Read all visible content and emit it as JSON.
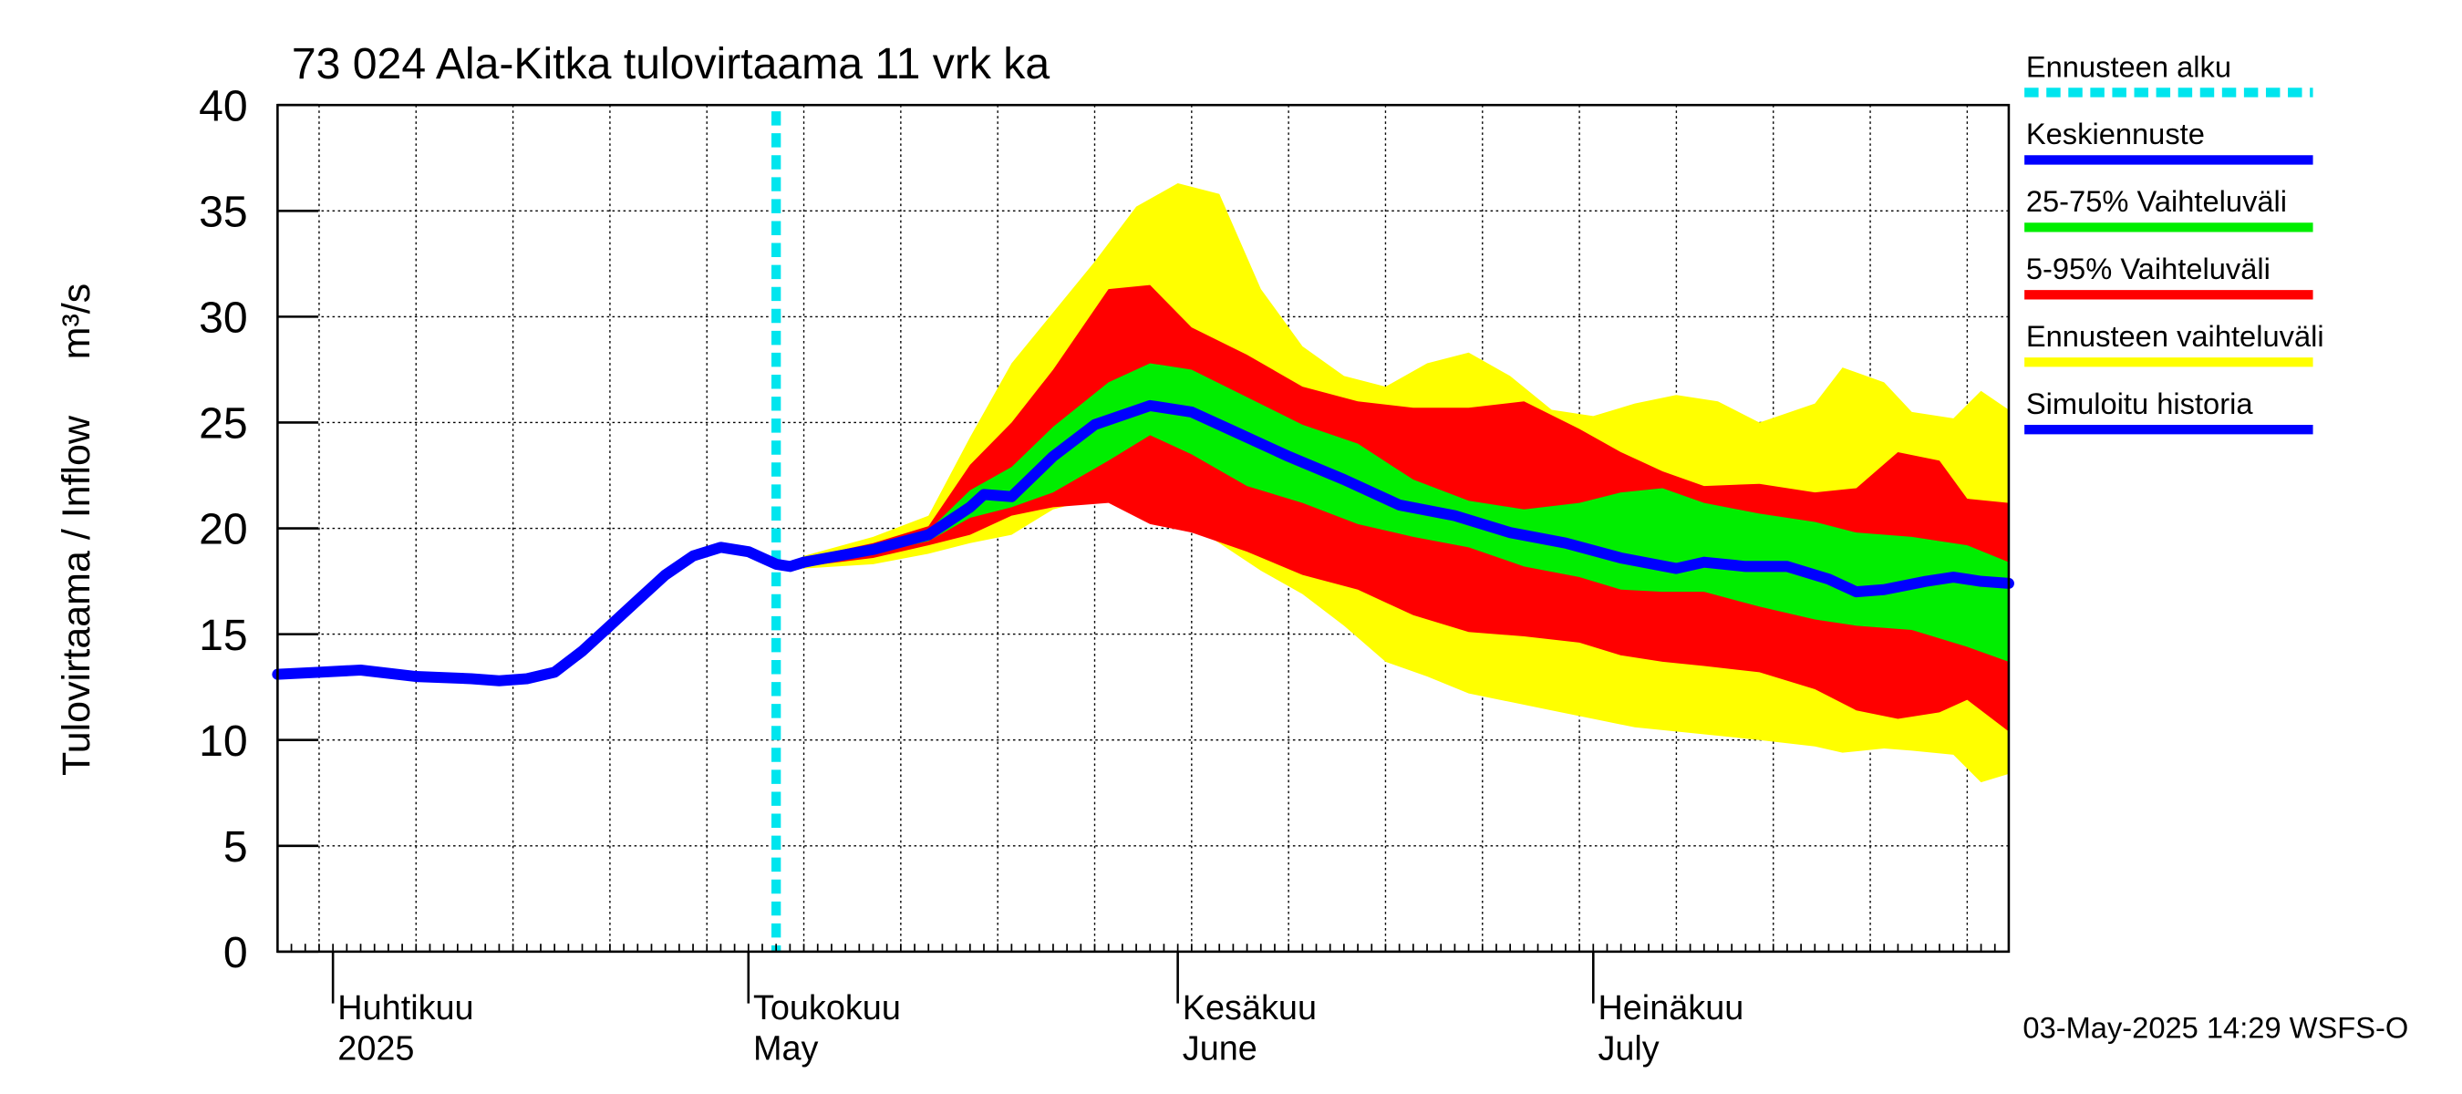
{
  "chart_data": {
    "type": "area",
    "title": "73 024 Ala-Kitka tulovirtaama 11 vrk ka",
    "ylabel": "Tulovirtaama / Inflow",
    "yunit": "m³/s",
    "ylim": [
      0,
      40
    ],
    "yticks": [
      "0",
      "5",
      "10",
      "15",
      "20",
      "25",
      "30",
      "35",
      "40"
    ],
    "xlim": [
      "2025-03-28",
      "2025-07-31"
    ],
    "grid": true,
    "month_labels": [
      {
        "date": "2025-04-01",
        "fi": "Huhtikuu",
        "en": "2025"
      },
      {
        "date": "2025-05-01",
        "fi": "Toukokuu",
        "en": "May"
      },
      {
        "date": "2025-06-01",
        "fi": "Kesäkuu",
        "en": "June"
      },
      {
        "date": "2025-07-01",
        "fi": "Heinäkuu",
        "en": "July"
      }
    ],
    "forecast_start": "2025-05-03",
    "footer": "03-May-2025 14:29 WSFS-O",
    "legend_position": "right",
    "colors": {
      "forecast_start": "#00e5ee",
      "median": "#0000ff",
      "band_25_75": "#00ee00",
      "band_5_95": "#ff0000",
      "band_range": "#ffff00",
      "history": "#0000ff"
    },
    "legend": [
      {
        "label": "Ennusteen alku",
        "color": "#00e5ee",
        "style": "dotted"
      },
      {
        "label": "Keskiennuste",
        "color": "#0000ff",
        "style": "solid"
      },
      {
        "label": "25-75% Vaihteluväli",
        "color": "#00ee00",
        "style": "solid"
      },
      {
        "label": "5-95% Vaihteluväli",
        "color": "#ff0000",
        "style": "solid"
      },
      {
        "label": "Ennusteen vaihteluväli",
        "color": "#ffff00",
        "style": "solid"
      },
      {
        "label": "Simuloitu historia",
        "color": "#0000ff",
        "style": "solid"
      }
    ],
    "history": [
      [
        "2025-03-28",
        13.1
      ],
      [
        "2025-03-31",
        13.2
      ],
      [
        "2025-04-03",
        13.3
      ],
      [
        "2025-04-07",
        13.0
      ],
      [
        "2025-04-11",
        12.9
      ],
      [
        "2025-04-13",
        12.8
      ],
      [
        "2025-04-15",
        12.9
      ],
      [
        "2025-04-17",
        13.2
      ],
      [
        "2025-04-19",
        14.2
      ],
      [
        "2025-04-21",
        15.4
      ],
      [
        "2025-04-23",
        16.6
      ],
      [
        "2025-04-25",
        17.8
      ],
      [
        "2025-04-27",
        18.7
      ],
      [
        "2025-04-29",
        19.1
      ],
      [
        "2025-05-01",
        18.9
      ],
      [
        "2025-05-02",
        18.6
      ],
      [
        "2025-05-03",
        18.3
      ],
      [
        "2025-05-04",
        18.2
      ],
      [
        "2025-05-05",
        18.4
      ]
    ],
    "median": [
      [
        "2025-05-05",
        18.4
      ],
      [
        "2025-05-10",
        19.0
      ],
      [
        "2025-05-14",
        19.7
      ],
      [
        "2025-05-17",
        21.0
      ],
      [
        "2025-05-18",
        21.6
      ],
      [
        "2025-05-20",
        21.5
      ],
      [
        "2025-05-23",
        23.4
      ],
      [
        "2025-05-26",
        24.9
      ],
      [
        "2025-05-30",
        25.8
      ],
      [
        "2025-06-02",
        25.5
      ],
      [
        "2025-06-05",
        24.6
      ],
      [
        "2025-06-09",
        23.4
      ],
      [
        "2025-06-13",
        22.3
      ],
      [
        "2025-06-17",
        21.1
      ],
      [
        "2025-06-21",
        20.6
      ],
      [
        "2025-06-25",
        19.8
      ],
      [
        "2025-06-29",
        19.3
      ],
      [
        "2025-07-03",
        18.6
      ],
      [
        "2025-07-07",
        18.1
      ],
      [
        "2025-07-09",
        18.4
      ],
      [
        "2025-07-12",
        18.2
      ],
      [
        "2025-07-15",
        18.2
      ],
      [
        "2025-07-18",
        17.6
      ],
      [
        "2025-07-20",
        17.0
      ],
      [
        "2025-07-22",
        17.1
      ],
      [
        "2025-07-25",
        17.5
      ],
      [
        "2025-07-27",
        17.7
      ],
      [
        "2025-07-29",
        17.5
      ],
      [
        "2025-07-31",
        17.4
      ]
    ],
    "band_25_75": [
      [
        "2025-05-05",
        18.5,
        18.3
      ],
      [
        "2025-05-10",
        19.1,
        18.8
      ],
      [
        "2025-05-14",
        19.9,
        19.4
      ],
      [
        "2025-05-17",
        21.8,
        20.5
      ],
      [
        "2025-05-20",
        22.9,
        21.0
      ],
      [
        "2025-05-23",
        24.8,
        21.7
      ],
      [
        "2025-05-27",
        26.9,
        23.2
      ],
      [
        "2025-05-30",
        27.8,
        24.4
      ],
      [
        "2025-06-02",
        27.5,
        23.5
      ],
      [
        "2025-06-06",
        26.2,
        22.0
      ],
      [
        "2025-06-10",
        24.9,
        21.2
      ],
      [
        "2025-06-14",
        24.0,
        20.2
      ],
      [
        "2025-06-18",
        22.3,
        19.6
      ],
      [
        "2025-06-22",
        21.3,
        19.1
      ],
      [
        "2025-06-26",
        20.9,
        18.2
      ],
      [
        "2025-06-30",
        21.2,
        17.7
      ],
      [
        "2025-07-03",
        21.7,
        17.1
      ],
      [
        "2025-07-06",
        21.9,
        17.0
      ],
      [
        "2025-07-09",
        21.2,
        17.0
      ],
      [
        "2025-07-13",
        20.7,
        16.3
      ],
      [
        "2025-07-17",
        20.3,
        15.7
      ],
      [
        "2025-07-20",
        19.8,
        15.4
      ],
      [
        "2025-07-24",
        19.6,
        15.2
      ],
      [
        "2025-07-28",
        19.2,
        14.4
      ],
      [
        "2025-07-31",
        18.4,
        13.7
      ]
    ],
    "band_5_95": [
      [
        "2025-05-05",
        18.6,
        18.2
      ],
      [
        "2025-05-10",
        19.3,
        18.6
      ],
      [
        "2025-05-14",
        20.1,
        19.2
      ],
      [
        "2025-05-17",
        23.0,
        19.7
      ],
      [
        "2025-05-20",
        25.0,
        20.6
      ],
      [
        "2025-05-23",
        27.5,
        21.0
      ],
      [
        "2025-05-27",
        31.3,
        21.2
      ],
      [
        "2025-05-30",
        31.5,
        20.2
      ],
      [
        "2025-06-02",
        29.5,
        19.8
      ],
      [
        "2025-06-06",
        28.2,
        18.9
      ],
      [
        "2025-06-10",
        26.7,
        17.8
      ],
      [
        "2025-06-14",
        26.0,
        17.1
      ],
      [
        "2025-06-18",
        25.7,
        15.9
      ],
      [
        "2025-06-22",
        25.7,
        15.1
      ],
      [
        "2025-06-26",
        26.0,
        14.9
      ],
      [
        "2025-06-30",
        24.7,
        14.6
      ],
      [
        "2025-07-03",
        23.6,
        14.0
      ],
      [
        "2025-07-06",
        22.7,
        13.7
      ],
      [
        "2025-07-09",
        22.0,
        13.5
      ],
      [
        "2025-07-13",
        22.1,
        13.2
      ],
      [
        "2025-07-17",
        21.7,
        12.4
      ],
      [
        "2025-07-20",
        21.9,
        11.4
      ],
      [
        "2025-07-23",
        23.6,
        11.0
      ],
      [
        "2025-07-26",
        23.2,
        11.3
      ],
      [
        "2025-07-28",
        21.4,
        11.9
      ],
      [
        "2025-07-31",
        21.2,
        10.4
      ]
    ],
    "band_range": [
      [
        "2025-05-05",
        18.7,
        18.1
      ],
      [
        "2025-05-10",
        19.6,
        18.3
      ],
      [
        "2025-05-14",
        20.6,
        18.8
      ],
      [
        "2025-05-17",
        24.3,
        19.3
      ],
      [
        "2025-05-20",
        27.8,
        19.7
      ],
      [
        "2025-05-23",
        30.2,
        20.9
      ],
      [
        "2025-05-26",
        32.6,
        21.4
      ],
      [
        "2025-05-29",
        35.2,
        21.2
      ],
      [
        "2025-06-01",
        36.3,
        20.5
      ],
      [
        "2025-06-04",
        35.8,
        19.3
      ],
      [
        "2025-06-07",
        31.3,
        18.0
      ],
      [
        "2025-06-10",
        28.6,
        16.9
      ],
      [
        "2025-06-13",
        27.2,
        15.4
      ],
      [
        "2025-06-16",
        26.7,
        13.7
      ],
      [
        "2025-06-19",
        27.8,
        13.0
      ],
      [
        "2025-06-22",
        28.3,
        12.2
      ],
      [
        "2025-06-25",
        27.2,
        11.8
      ],
      [
        "2025-06-28",
        25.6,
        11.4
      ],
      [
        "2025-07-01",
        25.3,
        11.0
      ],
      [
        "2025-07-04",
        25.9,
        10.6
      ],
      [
        "2025-07-07",
        26.3,
        10.4
      ],
      [
        "2025-07-10",
        26.0,
        10.2
      ],
      [
        "2025-07-13",
        25.0,
        10.0
      ],
      [
        "2025-07-17",
        25.9,
        9.7
      ],
      [
        "2025-07-19",
        27.6,
        9.4
      ],
      [
        "2025-07-22",
        26.9,
        9.6
      ],
      [
        "2025-07-24",
        25.5,
        9.5
      ],
      [
        "2025-07-27",
        25.2,
        9.3
      ],
      [
        "2025-07-29",
        26.5,
        8.0
      ],
      [
        "2025-07-31",
        25.6,
        8.4
      ]
    ]
  }
}
